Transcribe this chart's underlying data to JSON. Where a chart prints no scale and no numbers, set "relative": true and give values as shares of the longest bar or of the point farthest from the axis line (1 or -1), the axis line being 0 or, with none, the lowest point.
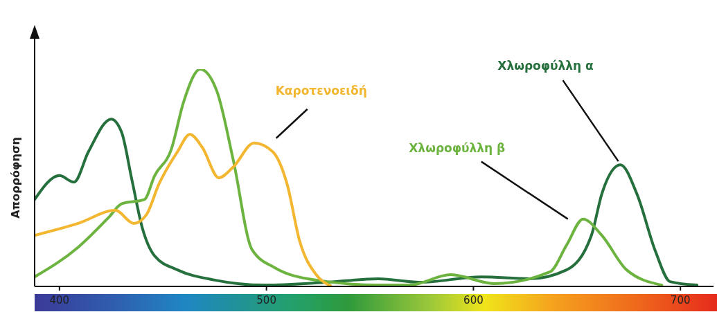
{
  "chart_data": {
    "type": "line",
    "ylabel": "Απορρόφηση",
    "relative": true,
    "xlim": [
      388,
      716
    ],
    "xticks": [
      400,
      500,
      600,
      700
    ],
    "series": [
      {
        "name": "Χλωροφύλλη α",
        "color": "#25703d",
        "x": [
          388,
          400,
          407,
          414,
          425,
          430,
          435,
          440,
          446,
          457,
          475,
          499,
          529,
          554,
          574,
          604,
          627,
          645,
          657,
          662,
          671,
          679,
          688,
          695,
          708
        ],
        "values": [
          0.4,
          0.51,
          0.48,
          0.62,
          0.77,
          0.71,
          0.49,
          0.27,
          0.14,
          0.076,
          0.029,
          0.006,
          0.019,
          0.035,
          0.019,
          0.044,
          0.035,
          0.076,
          0.235,
          0.425,
          0.56,
          0.425,
          0.16,
          0.022,
          0.006
        ]
      },
      {
        "name": "Χλωροφύλλη β",
        "color": "#6cb43f",
        "x": [
          388,
          409,
          424,
          430,
          441,
          446,
          454,
          460,
          468,
          476,
          484,
          493,
          504,
          524,
          554,
          569,
          589,
          610,
          637,
          645,
          653,
          662,
          674,
          691
        ],
        "values": [
          0.044,
          0.18,
          0.32,
          0.38,
          0.4,
          0.51,
          0.63,
          0.85,
          1.0,
          0.9,
          0.58,
          0.17,
          0.086,
          0.029,
          0.006,
          0.006,
          0.054,
          0.013,
          0.067,
          0.19,
          0.31,
          0.235,
          0.076,
          0.006
        ]
      },
      {
        "name": "Καροτενοειδή",
        "color": "#f2b630",
        "x": [
          388,
          409,
          427,
          436,
          442,
          448,
          457,
          463,
          469,
          477,
          484,
          494,
          503,
          510,
          516,
          524,
          531
        ],
        "values": [
          0.235,
          0.29,
          0.35,
          0.29,
          0.33,
          0.47,
          0.62,
          0.7,
          0.64,
          0.5,
          0.55,
          0.66,
          0.62,
          0.47,
          0.21,
          0.054,
          0.003
        ]
      }
    ]
  }
}
